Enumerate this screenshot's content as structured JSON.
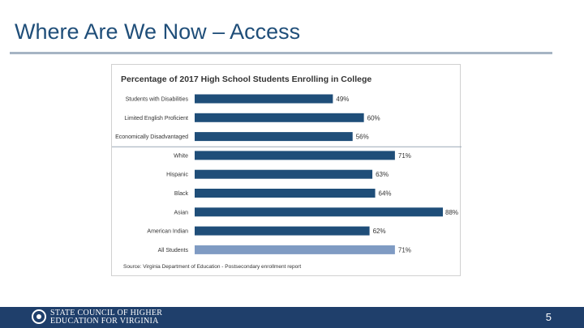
{
  "slide": {
    "title": "Where Are We Now – Access",
    "page_number": "5"
  },
  "footer": {
    "org_line1": "STATE COUNCIL OF HIGHER",
    "org_line2": "EDUCATION FOR VIRGINIA"
  },
  "colors": {
    "title": "#1f4e79",
    "bar": "#1f4e79",
    "bar_highlight": "#7f9bc3",
    "footer": "#1f3f6b"
  },
  "chart_data": {
    "type": "bar",
    "orientation": "horizontal",
    "title": "Percentage of 2017 High School Students Enrolling in College",
    "categories": [
      "Students with Disabilities",
      "Limited English Proficient",
      "Economically Disadvantaged",
      "White",
      "Hispanic",
      "Black",
      "Asian",
      "American Indian",
      "All Students"
    ],
    "values": [
      49,
      60,
      56,
      71,
      63,
      64,
      88,
      62,
      71
    ],
    "data_labels": [
      "49%",
      "60%",
      "56%",
      "71%",
      "63%",
      "64%",
      "88%",
      "62%",
      "71%"
    ],
    "highlight_index": 8,
    "separator_after_index": 2,
    "xlim": [
      0,
      88
    ],
    "grid": false,
    "source": "Source: Virginia Department of Education - Postsecondary enrollment report"
  }
}
